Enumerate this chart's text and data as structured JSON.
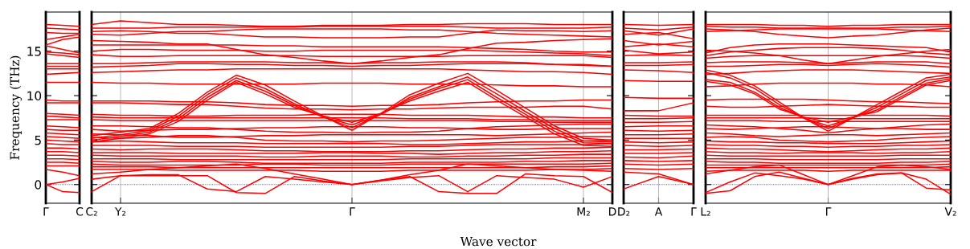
{
  "chart_data": [
    {
      "type": "line",
      "color": "#ff0000",
      "ylabel": "Frequency (THz)",
      "ylim": [
        -2.1,
        19.4
      ],
      "yticks": [
        0,
        5,
        10,
        15
      ],
      "categories": [
        "Γ",
        null,
        "C"
      ],
      "grid": false,
      "line_style": "solid",
      "marker": "none",
      "ref_lines": [
        {
          "axis": "y",
          "value": 0,
          "color": "#0000ff",
          "line_style": "dotted"
        }
      ],
      "series": [
        {
          "values": [
            18.0,
            17.9,
            17.8
          ]
        },
        {
          "values": [
            17.6,
            17.5,
            17.4
          ]
        },
        {
          "values": [
            17.1,
            17.0,
            17.0
          ]
        },
        {
          "values": [
            16.3,
            16.6,
            16.9
          ]
        },
        {
          "values": [
            15.7,
            16.3,
            16.6
          ]
        },
        {
          "values": [
            15.6,
            15.2,
            14.8
          ]
        },
        {
          "values": [
            14.9,
            14.8,
            14.6
          ]
        },
        {
          "values": [
            14.7,
            14.5,
            14.3
          ]
        },
        {
          "values": [
            13.6,
            13.6,
            13.6
          ]
        },
        {
          "values": [
            13.3,
            13.3,
            13.3
          ]
        },
        {
          "values": [
            13.0,
            13.0,
            13.0
          ]
        },
        {
          "values": [
            12.4,
            12.5,
            12.6
          ]
        },
        {
          "values": [
            11.5,
            11.5,
            11.5
          ]
        },
        {
          "values": [
            9.5,
            9.4,
            9.4
          ]
        },
        {
          "values": [
            9.2,
            9.2,
            9.2
          ]
        },
        {
          "values": [
            8.0,
            7.9,
            7.8
          ]
        },
        {
          "values": [
            7.7,
            7.6,
            7.5
          ]
        },
        {
          "values": [
            7.3,
            7.3,
            7.3
          ]
        },
        {
          "values": [
            6.6,
            6.5,
            6.4
          ]
        },
        {
          "values": [
            6.2,
            6.1,
            6.1
          ]
        },
        {
          "values": [
            5.8,
            5.7,
            5.6
          ]
        },
        {
          "values": [
            5.4,
            5.3,
            5.2
          ]
        },
        {
          "values": [
            5.0,
            4.9,
            4.8
          ]
        },
        {
          "values": [
            4.6,
            4.5,
            4.5
          ]
        },
        {
          "values": [
            4.1,
            4.1,
            4.0
          ]
        },
        {
          "values": [
            3.7,
            3.7,
            3.6
          ]
        },
        {
          "values": [
            3.3,
            3.3,
            3.2
          ]
        },
        {
          "values": [
            2.9,
            2.9,
            2.8
          ]
        },
        {
          "values": [
            2.5,
            2.5,
            2.4
          ]
        },
        {
          "values": [
            2.1,
            2.1,
            2.1
          ]
        },
        {
          "values": [
            1.7,
            1.4,
            1.0
          ]
        },
        {
          "values": [
            0.0,
            0.3,
            0.7
          ]
        },
        {
          "values": [
            0.0,
            -0.8,
            -0.9
          ]
        }
      ]
    },
    {
      "type": "line",
      "color": "#ff0000",
      "xlabel": "Wave vector",
      "ylim": [
        -2.1,
        19.4
      ],
      "yticks": [
        0,
        5,
        10,
        15
      ],
      "tick_labels": "x",
      "categories": [
        "C₂",
        "Y₂",
        null,
        null,
        null,
        null,
        null,
        null,
        null,
        "Γ",
        null,
        null,
        null,
        null,
        null,
        null,
        null,
        "M₂",
        "D"
      ],
      "grid": false,
      "line_style": "solid",
      "marker": "none",
      "ref_lines": [
        {
          "axis": "y",
          "value": 0,
          "color": "#0000ff",
          "line_style": "dotted"
        },
        {
          "axis": "x",
          "value": "Y₂",
          "color": "#aaaaaa",
          "line_style": "solid"
        },
        {
          "axis": "x",
          "value": "Γ",
          "color": "#aaaaaa",
          "line_style": "solid"
        },
        {
          "axis": "x",
          "value": "M₂",
          "color": "#aaaaaa",
          "line_style": "solid"
        }
      ],
      "series": [
        {
          "values": [
            18.0,
            18.4,
            18.2,
            18.0,
            18.0,
            17.9,
            17.8,
            17.8,
            17.9,
            17.9,
            17.9,
            18.0,
            18.0,
            18.1,
            18.1,
            18.1,
            18.0,
            18.0,
            18.0
          ]
        },
        {
          "values": [
            17.6,
            17.6,
            17.6,
            17.7,
            17.7,
            17.7,
            17.7,
            17.7,
            17.8,
            17.8,
            17.8,
            17.8,
            17.8,
            17.7,
            17.6,
            17.6,
            17.6,
            17.6,
            17.7
          ]
        },
        {
          "values": [
            17.2,
            17.3,
            17.2,
            17.0,
            17.0,
            16.8,
            16.6,
            16.6,
            16.5,
            16.5,
            16.5,
            16.6,
            16.6,
            17.0,
            17.4,
            17.3,
            17.3,
            17.2,
            17.3
          ]
        },
        {
          "values": [
            16.9,
            16.8,
            17.0,
            17.2,
            17.2,
            17.4,
            17.5,
            17.5,
            17.5,
            17.5,
            17.5,
            17.4,
            17.4,
            17.2,
            17.0,
            16.9,
            16.8,
            16.7,
            16.6
          ]
        },
        {
          "values": [
            16.2,
            16.1,
            16.0,
            15.8,
            15.8,
            15.2,
            14.6,
            14.3,
            13.9,
            13.6,
            13.9,
            14.3,
            14.6,
            15.3,
            15.9,
            16.0,
            16.2,
            16.3,
            16.4
          ]
        },
        {
          "values": [
            15.7,
            15.7,
            15.7,
            15.7,
            15.7,
            15.7,
            15.6,
            15.6,
            15.5,
            15.5,
            15.5,
            15.5,
            15.5,
            15.4,
            15.3,
            15.2,
            15.0,
            14.9,
            14.9
          ]
        },
        {
          "values": [
            15.0,
            15.2,
            15.2,
            15.1,
            15.1,
            15.1,
            15.0,
            15.0,
            15.1,
            15.1,
            15.1,
            15.1,
            15.1,
            15.1,
            15.0,
            14.9,
            14.8,
            14.7,
            14.5
          ]
        },
        {
          "values": [
            14.6,
            14.4,
            14.4,
            14.5,
            14.5,
            14.5,
            14.5,
            14.5,
            14.4,
            14.4,
            14.4,
            14.4,
            14.4,
            14.5,
            14.5,
            14.5,
            14.5,
            14.5,
            14.3
          ]
        },
        {
          "values": [
            13.6,
            13.6,
            13.7,
            13.8,
            13.8,
            13.8,
            13.8,
            13.7,
            13.7,
            13.6,
            13.7,
            13.7,
            13.8,
            13.8,
            13.8,
            13.7,
            13.5,
            13.4,
            13.3
          ]
        },
        {
          "values": [
            13.2,
            13.3,
            13.4,
            13.6,
            13.6,
            13.5,
            13.5,
            13.4,
            13.4,
            13.3,
            13.4,
            13.4,
            13.5,
            13.6,
            13.6,
            13.6,
            13.5,
            13.5,
            13.3
          ]
        },
        {
          "values": [
            12.6,
            12.7,
            12.8,
            12.9,
            12.9,
            13.0,
            13.0,
            13.0,
            13.0,
            13.0,
            13.0,
            13.0,
            13.0,
            12.9,
            12.8,
            12.7,
            12.7,
            12.6,
            12.4
          ]
        },
        {
          "values": [
            11.5,
            11.4,
            11.4,
            11.3,
            11.3,
            11.3,
            11.3,
            11.3,
            11.4,
            11.4,
            11.4,
            11.3,
            11.3,
            11.3,
            11.2,
            11.1,
            11.1,
            11.0,
            11.0
          ]
        },
        {
          "values": [
            5.5,
            5.9,
            6.3,
            8.0,
            10.4,
            12.3,
            11.2,
            9.4,
            7.7,
            6.1,
            8.0,
            10.1,
            11.4,
            12.5,
            10.6,
            8.6,
            6.6,
            5.2,
            5.0
          ]
        },
        {
          "values": [
            5.2,
            5.6,
            6.1,
            7.7,
            10.1,
            12.0,
            10.8,
            9.1,
            7.6,
            6.4,
            7.9,
            9.8,
            11.0,
            12.1,
            10.2,
            8.2,
            6.3,
            4.9,
            4.8
          ]
        },
        {
          "values": [
            5.0,
            5.4,
            5.9,
            7.4,
            9.8,
            11.7,
            10.5,
            8.9,
            7.6,
            6.7,
            7.9,
            9.6,
            10.8,
            11.8,
            9.8,
            7.9,
            6.0,
            4.7,
            4.6
          ]
        },
        {
          "values": [
            4.8,
            5.2,
            5.7,
            7.1,
            9.5,
            11.5,
            10.2,
            8.7,
            7.7,
            7.0,
            8.0,
            9.4,
            10.5,
            11.5,
            9.5,
            7.6,
            5.7,
            4.4,
            4.3
          ]
        },
        {
          "values": [
            9.4,
            9.4,
            9.4,
            9.3,
            9.3,
            9.2,
            9.0,
            8.9,
            8.9,
            8.8,
            8.9,
            8.9,
            9.0,
            9.2,
            9.3,
            9.4,
            9.4,
            9.5,
            9.5
          ]
        },
        {
          "values": [
            9.2,
            9.2,
            9.1,
            9.0,
            9.0,
            8.8,
            8.6,
            8.5,
            8.5,
            8.4,
            8.5,
            8.5,
            8.6,
            8.7,
            8.7,
            8.7,
            8.8,
            8.8,
            8.5
          ]
        },
        {
          "values": [
            7.9,
            7.8,
            7.8,
            7.7,
            7.7,
            7.8,
            7.8,
            7.8,
            7.9,
            7.9,
            7.9,
            7.8,
            7.8,
            7.8,
            7.7,
            7.6,
            7.6,
            7.5,
            7.5
          ]
        },
        {
          "values": [
            7.6,
            7.5,
            7.5,
            7.5,
            7.5,
            7.5,
            7.5,
            7.5,
            7.5,
            7.5,
            7.5,
            7.4,
            7.4,
            7.4,
            7.3,
            7.3,
            7.2,
            7.2,
            7.2
          ]
        },
        {
          "values": [
            7.3,
            7.2,
            7.2,
            7.2,
            7.2,
            7.2,
            7.2,
            7.2,
            7.2,
            7.2,
            7.2,
            7.2,
            7.2,
            7.2,
            7.1,
            7.1,
            7.0,
            7.0,
            7.0
          ]
        },
        {
          "values": [
            6.6,
            6.6,
            6.5,
            6.4,
            6.4,
            6.2,
            6.0,
            5.9,
            5.9,
            5.8,
            5.9,
            5.9,
            6.0,
            6.3,
            6.5,
            6.6,
            6.7,
            6.8,
            6.8
          ]
        },
        {
          "values": [
            6.2,
            6.0,
            6.1,
            6.2,
            6.2,
            6.3,
            6.4,
            6.4,
            6.5,
            6.5,
            6.5,
            6.4,
            6.4,
            6.3,
            6.2,
            6.2,
            6.3,
            6.3,
            6.3
          ]
        },
        {
          "values": [
            5.7,
            5.6,
            5.5,
            5.3,
            5.3,
            5.4,
            5.5,
            5.5,
            5.6,
            5.6,
            5.6,
            5.6,
            5.6,
            5.6,
            5.5,
            5.6,
            5.7,
            5.8,
            5.9
          ]
        },
        {
          "values": [
            5.3,
            5.2,
            5.3,
            5.5,
            5.5,
            5.3,
            5.0,
            4.9,
            4.9,
            4.8,
            4.9,
            4.9,
            5.0,
            5.1,
            5.2,
            5.3,
            5.3,
            5.4,
            5.4
          ]
        },
        {
          "values": [
            4.8,
            4.9,
            4.8,
            4.7,
            4.7,
            4.7,
            4.6,
            4.6,
            4.6,
            4.6,
            4.6,
            4.5,
            4.5,
            4.6,
            4.7,
            4.8,
            4.8,
            4.9,
            5.0
          ]
        },
        {
          "values": [
            4.4,
            4.4,
            4.4,
            4.3,
            4.3,
            4.3,
            4.2,
            4.2,
            4.2,
            4.2,
            4.2,
            4.3,
            4.3,
            4.4,
            4.5,
            4.5,
            4.5,
            4.5,
            4.6
          ]
        },
        {
          "values": [
            4.0,
            3.9,
            4.0,
            4.0,
            4.0,
            3.9,
            3.8,
            3.8,
            3.7,
            3.7,
            3.7,
            3.8,
            3.8,
            3.9,
            4.0,
            4.0,
            4.1,
            4.1,
            4.2
          ]
        },
        {
          "values": [
            3.6,
            3.6,
            3.6,
            3.5,
            3.5,
            3.5,
            3.5,
            3.5,
            3.6,
            3.6,
            3.5,
            3.5,
            3.4,
            3.5,
            3.6,
            3.6,
            3.7,
            3.7,
            3.8
          ]
        },
        {
          "values": [
            3.3,
            3.2,
            3.2,
            3.2,
            3.2,
            3.2,
            3.1,
            3.1,
            3.2,
            3.2,
            3.2,
            3.1,
            3.1,
            3.2,
            3.2,
            3.3,
            3.3,
            3.4,
            3.4
          ]
        },
        {
          "values": [
            2.9,
            2.9,
            2.9,
            2.8,
            2.8,
            2.8,
            2.8,
            2.8,
            2.8,
            2.8,
            2.8,
            2.9,
            2.9,
            2.9,
            2.9,
            2.9,
            3.0,
            3.0,
            3.0
          ]
        },
        {
          "values": [
            2.6,
            2.5,
            2.5,
            2.6,
            2.6,
            2.5,
            2.4,
            2.4,
            2.4,
            2.4,
            2.4,
            2.5,
            2.5,
            2.5,
            2.5,
            2.6,
            2.6,
            2.7,
            2.7
          ]
        },
        {
          "values": [
            2.3,
            2.2,
            2.2,
            2.2,
            2.2,
            2.2,
            2.3,
            2.3,
            2.2,
            2.2,
            2.2,
            2.3,
            2.3,
            2.3,
            2.3,
            2.3,
            2.3,
            2.3,
            2.4
          ]
        },
        {
          "values": [
            2.0,
            2.0,
            2.0,
            1.9,
            1.9,
            1.9,
            1.9,
            1.9,
            1.9,
            1.9,
            1.9,
            1.9,
            1.9,
            1.9,
            1.9,
            1.9,
            2.0,
            2.0,
            2.1
          ]
        },
        {
          "values": [
            1.7,
            1.7,
            1.7,
            1.6,
            1.6,
            1.6,
            1.6,
            1.6,
            1.5,
            1.5,
            1.5,
            1.6,
            1.6,
            1.6,
            1.6,
            1.6,
            1.7,
            1.7,
            1.8
          ]
        },
        {
          "values": [
            1.2,
            1.4,
            1.7,
            1.9,
            2.1,
            2.3,
            1.8,
            1.2,
            0.6,
            0.0,
            0.5,
            1.1,
            1.6,
            2.3,
            2.1,
            1.9,
            1.7,
            1.6,
            1.5
          ]
        },
        {
          "values": [
            -0.8,
            1.0,
            1.1,
            1.1,
            -0.5,
            -0.8,
            0.9,
            0.6,
            0.3,
            0.0,
            0.4,
            0.8,
            1.0,
            -0.8,
            1.0,
            0.8,
            0.6,
            -0.3,
            0.9
          ]
        },
        {
          "values": [
            0.6,
            1.0,
            1.0,
            1.0,
            1.0,
            -0.9,
            -1.0,
            0.9,
            0.4,
            0.0,
            0.5,
            0.9,
            -0.8,
            -1.0,
            -1.0,
            1.2,
            1.0,
            0.9,
            -0.9
          ]
        }
      ]
    },
    {
      "type": "line",
      "color": "#ff0000",
      "ylim": [
        -2.1,
        19.4
      ],
      "yticks": [
        0,
        5,
        10,
        15
      ],
      "tick_labels": "x",
      "categories": [
        "D₂",
        "A",
        "Γ"
      ],
      "grid": false,
      "line_style": "solid",
      "marker": "none",
      "ref_lines": [
        {
          "axis": "y",
          "value": 0,
          "color": "#0000ff",
          "line_style": "dotted"
        },
        {
          "axis": "x",
          "value": "A",
          "color": "#aaaaaa",
          "line_style": "solid"
        }
      ],
      "series": [
        {
          "values": [
            18.0,
            17.9,
            18.0
          ]
        },
        {
          "values": [
            17.6,
            17.4,
            17.7
          ]
        },
        {
          "values": [
            17.3,
            16.8,
            17.5
          ]
        },
        {
          "values": [
            16.9,
            17.1,
            16.4
          ]
        },
        {
          "values": [
            16.2,
            15.7,
            16.1
          ]
        },
        {
          "values": [
            15.5,
            15.8,
            15.5
          ]
        },
        {
          "values": [
            15.1,
            14.7,
            14.9
          ]
        },
        {
          "values": [
            14.5,
            14.6,
            14.5
          ]
        },
        {
          "values": [
            13.7,
            13.7,
            13.8
          ]
        },
        {
          "values": [
            13.4,
            13.4,
            13.5
          ]
        },
        {
          "values": [
            12.9,
            12.8,
            12.6
          ]
        },
        {
          "values": [
            11.7,
            11.6,
            11.6
          ]
        },
        {
          "values": [
            9.8,
            9.7,
            9.7
          ]
        },
        {
          "values": [
            8.3,
            8.3,
            9.2
          ]
        },
        {
          "values": [
            7.8,
            7.7,
            7.7
          ]
        },
        {
          "values": [
            7.4,
            7.4,
            7.5
          ]
        },
        {
          "values": [
            7.0,
            7.0,
            7.1
          ]
        },
        {
          "values": [
            6.5,
            6.6,
            6.6
          ]
        },
        {
          "values": [
            6.1,
            6.0,
            6.1
          ]
        },
        {
          "values": [
            5.6,
            5.6,
            5.7
          ]
        },
        {
          "values": [
            5.2,
            5.2,
            5.2
          ]
        },
        {
          "values": [
            4.8,
            4.7,
            4.8
          ]
        },
        {
          "values": [
            4.4,
            4.3,
            4.4
          ]
        },
        {
          "values": [
            3.9,
            3.9,
            4.0
          ]
        },
        {
          "values": [
            3.5,
            3.5,
            3.6
          ]
        },
        {
          "values": [
            3.1,
            3.0,
            3.2
          ]
        },
        {
          "values": [
            2.7,
            2.6,
            2.7
          ]
        },
        {
          "values": [
            2.3,
            2.2,
            2.3
          ]
        },
        {
          "values": [
            1.8,
            1.7,
            1.8
          ]
        },
        {
          "values": [
            1.4,
            1.2,
            0.0
          ]
        },
        {
          "values": [
            -0.5,
            0.9,
            0.0
          ]
        }
      ]
    },
    {
      "type": "line",
      "color": "#ff0000",
      "ylim": [
        -2.1,
        19.4
      ],
      "yticks": [
        0,
        5,
        10,
        15
      ],
      "tick_labels": "x",
      "categories": [
        "L₂",
        null,
        null,
        null,
        null,
        "Γ",
        null,
        null,
        null,
        null,
        "V₂"
      ],
      "grid": false,
      "line_style": "solid",
      "marker": "none",
      "ref_lines": [
        {
          "axis": "y",
          "value": 0,
          "color": "#0000ff",
          "line_style": "dotted"
        },
        {
          "axis": "x",
          "value": "Γ",
          "color": "#aaaaaa",
          "line_style": "solid"
        }
      ],
      "series": [
        {
          "values": [
            18.0,
            18.0,
            18.0,
            17.9,
            17.9,
            17.8,
            17.9,
            17.9,
            18.0,
            18.0,
            18.0
          ]
        },
        {
          "values": [
            17.8,
            17.7,
            17.7,
            17.6,
            17.6,
            17.6,
            17.6,
            17.6,
            17.7,
            17.7,
            17.8
          ]
        },
        {
          "values": [
            17.5,
            17.4,
            17.2,
            16.9,
            16.7,
            16.5,
            16.7,
            16.8,
            17.1,
            17.4,
            17.6
          ]
        },
        {
          "values": [
            17.2,
            17.3,
            17.4,
            17.5,
            17.5,
            17.5,
            17.5,
            17.5,
            17.4,
            17.3,
            17.2
          ]
        },
        {
          "values": [
            15.1,
            15.0,
            14.8,
            14.5,
            14.0,
            13.6,
            14.0,
            14.4,
            14.7,
            15.0,
            15.2
          ]
        },
        {
          "values": [
            14.8,
            15.4,
            15.7,
            15.8,
            15.8,
            15.8,
            15.7,
            15.6,
            15.5,
            15.4,
            14.9
          ]
        },
        {
          "values": [
            14.5,
            14.9,
            15.1,
            15.3,
            15.4,
            15.4,
            15.4,
            15.3,
            15.1,
            14.8,
            14.6
          ]
        },
        {
          "values": [
            14.2,
            14.4,
            14.5,
            14.5,
            14.5,
            14.5,
            14.5,
            14.5,
            14.5,
            14.4,
            14.2
          ]
        },
        {
          "values": [
            13.7,
            13.8,
            13.8,
            13.8,
            13.7,
            13.6,
            13.7,
            13.8,
            13.8,
            13.8,
            13.6
          ]
        },
        {
          "values": [
            13.3,
            13.3,
            13.4,
            13.5,
            13.5,
            13.4,
            13.5,
            13.6,
            13.5,
            13.4,
            13.2
          ]
        },
        {
          "values": [
            12.4,
            12.5,
            12.7,
            12.8,
            12.9,
            12.9,
            12.9,
            12.8,
            12.7,
            12.6,
            12.5
          ]
        },
        {
          "values": [
            11.0,
            11.1,
            11.3,
            11.4,
            11.4,
            11.4,
            11.4,
            11.3,
            11.3,
            11.2,
            11.0
          ]
        },
        {
          "values": [
            12.9,
            12.3,
            11.1,
            9.3,
            7.5,
            6.0,
            7.5,
            9.0,
            10.5,
            12.0,
            12.4
          ]
        },
        {
          "values": [
            12.6,
            12.0,
            10.8,
            9.0,
            7.5,
            6.3,
            7.5,
            8.7,
            10.2,
            11.7,
            12.1
          ]
        },
        {
          "values": [
            11.8,
            11.5,
            10.4,
            8.7,
            7.5,
            6.6,
            7.5,
            8.4,
            9.9,
            11.4,
            11.9
          ]
        },
        {
          "values": [
            11.6,
            11.2,
            10.2,
            8.5,
            7.6,
            7.0,
            7.6,
            8.2,
            9.7,
            11.2,
            11.7
          ]
        },
        {
          "values": [
            9.5,
            9.6,
            9.6,
            9.6,
            9.6,
            9.5,
            9.4,
            9.3,
            9.3,
            9.2,
            9.1
          ]
        },
        {
          "values": [
            8.8,
            8.7,
            8.7,
            8.8,
            8.9,
            9.0,
            8.9,
            8.8,
            8.8,
            8.7,
            8.7
          ]
        },
        {
          "values": [
            7.8,
            7.8,
            7.8,
            7.8,
            7.8,
            7.8,
            7.8,
            7.8,
            7.8,
            7.8,
            7.7
          ]
        },
        {
          "values": [
            7.5,
            7.5,
            7.5,
            7.5,
            7.5,
            7.4,
            7.4,
            7.4,
            7.4,
            7.4,
            7.4
          ]
        },
        {
          "values": [
            7.2,
            7.2,
            7.2,
            7.1,
            7.1,
            7.1,
            7.1,
            7.1,
            7.1,
            7.1,
            7.1
          ]
        },
        {
          "values": [
            6.7,
            6.6,
            6.5,
            6.3,
            6.1,
            5.8,
            6.1,
            6.3,
            6.5,
            6.7,
            6.8
          ]
        },
        {
          "values": [
            6.3,
            6.2,
            6.3,
            6.4,
            6.5,
            6.5,
            6.4,
            6.3,
            6.3,
            6.2,
            6.2
          ]
        },
        {
          "values": [
            5.8,
            5.7,
            5.5,
            5.4,
            5.5,
            5.6,
            5.6,
            5.5,
            5.6,
            5.7,
            5.8
          ]
        },
        {
          "values": [
            5.3,
            5.4,
            5.3,
            5.0,
            4.9,
            4.8,
            4.9,
            5.0,
            5.2,
            5.3,
            5.4
          ]
        },
        {
          "values": [
            4.9,
            4.8,
            4.8,
            4.7,
            4.7,
            4.6,
            4.6,
            4.6,
            4.7,
            4.8,
            4.9
          ]
        },
        {
          "values": [
            4.5,
            4.4,
            4.4,
            4.3,
            4.3,
            4.2,
            4.3,
            4.3,
            4.4,
            4.4,
            4.5
          ]
        },
        {
          "values": [
            4.1,
            4.0,
            4.0,
            3.9,
            3.8,
            3.7,
            3.8,
            3.9,
            4.0,
            4.0,
            4.1
          ]
        },
        {
          "values": [
            3.7,
            3.6,
            3.6,
            3.5,
            3.6,
            3.6,
            3.6,
            3.5,
            3.6,
            3.6,
            3.7
          ]
        },
        {
          "values": [
            3.3,
            3.2,
            3.2,
            3.2,
            3.2,
            3.2,
            3.2,
            3.2,
            3.3,
            3.3,
            3.3
          ]
        },
        {
          "values": [
            2.9,
            2.9,
            2.9,
            2.8,
            2.8,
            2.8,
            2.8,
            2.8,
            2.9,
            2.9,
            2.9
          ]
        },
        {
          "values": [
            2.6,
            2.5,
            2.5,
            2.4,
            2.4,
            2.4,
            2.4,
            2.4,
            2.5,
            2.5,
            2.6
          ]
        },
        {
          "values": [
            2.2,
            2.2,
            2.2,
            2.2,
            2.2,
            2.2,
            2.2,
            2.2,
            2.2,
            2.2,
            2.3
          ]
        },
        {
          "values": [
            1.9,
            1.9,
            1.9,
            1.9,
            1.9,
            1.9,
            1.9,
            1.9,
            1.9,
            1.9,
            2.0
          ]
        },
        {
          "values": [
            1.5,
            1.6,
            1.6,
            1.6,
            1.6,
            1.5,
            1.6,
            1.6,
            1.6,
            1.6,
            1.6
          ]
        },
        {
          "values": [
            1.2,
            1.6,
            2.0,
            2.2,
            1.1,
            0.0,
            1.0,
            2.0,
            2.2,
            2.0,
            1.7
          ]
        },
        {
          "values": [
            -0.9,
            0.3,
            1.3,
            1.0,
            0.6,
            0.0,
            0.6,
            1.1,
            1.3,
            -0.4,
            -0.6
          ]
        },
        {
          "values": [
            -1.0,
            -0.7,
            0.9,
            1.4,
            0.7,
            0.0,
            0.7,
            1.2,
            1.3,
            0.6,
            -1.1
          ]
        }
      ]
    }
  ]
}
